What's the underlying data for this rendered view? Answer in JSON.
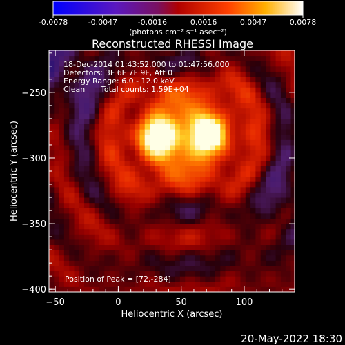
{
  "colorbar": {
    "tick_labels": [
      "-0.0078",
      "-0.0047",
      "-0.0016",
      "0.0016",
      "0.0047",
      "0.0078"
    ],
    "tick_values": [
      -0.0078,
      -0.0047,
      -0.0016,
      0.0016,
      0.0047,
      0.0078
    ],
    "range": [
      -0.0078,
      0.0078
    ],
    "units": "(photons cm⁻² s⁻¹ asec⁻²)"
  },
  "chart_data": {
    "type": "heatmap",
    "title": "Reconstructed RHESSI Image",
    "xlabel": "Heliocentric X (arcsec)",
    "ylabel": "Heliocentric Y (arcsec)",
    "xlim": [
      -55,
      140
    ],
    "ylim": [
      -402,
      -218
    ],
    "x_ticks": [
      -50,
      0,
      50,
      100
    ],
    "y_ticks": [
      -250,
      -300,
      -350,
      -400
    ],
    "x_tick_labels": [
      "−50",
      "0",
      "50",
      "100"
    ],
    "y_tick_labels": [
      "−250",
      "−300",
      "−350",
      "−400"
    ],
    "annotations": {
      "time": "18-Dec-2014 01:43:52.000 to 01:47:56.000",
      "detectors": "Detectors: 3F 6F 7F 9F, Att 0",
      "energy": "Energy Range: 6.0 - 12.0 keV",
      "method": "Clean",
      "counts": "Total counts: 1.59E+04",
      "peak": "Position of Peak = [72,-284]"
    },
    "sources": [
      {
        "x": 27,
        "y": -286,
        "intensity": 1.0
      },
      {
        "x": 72,
        "y": -284,
        "intensity": 1.0
      }
    ],
    "peak": {
      "x": 72,
      "y": -284
    },
    "colormap": "blue-purple-red-yellow-white"
  },
  "footer": {
    "date": "20-May-2022 18:30"
  }
}
